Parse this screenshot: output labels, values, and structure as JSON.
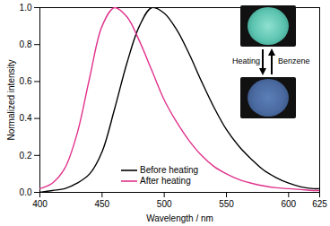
{
  "chart_data": {
    "type": "line",
    "x_label": "Wavelength / nm",
    "y_label": "Normalized intensity",
    "x": [
      400,
      410,
      420,
      430,
      440,
      450,
      460,
      470,
      480,
      490,
      500,
      510,
      520,
      530,
      540,
      550,
      560,
      570,
      580,
      590,
      600,
      610,
      620,
      625
    ],
    "series": [
      {
        "name": "Before heating",
        "color": "#000000",
        "values": [
          0.0,
          0.01,
          0.02,
          0.05,
          0.1,
          0.22,
          0.45,
          0.7,
          0.9,
          1.0,
          0.97,
          0.88,
          0.75,
          0.6,
          0.46,
          0.34,
          0.25,
          0.18,
          0.12,
          0.08,
          0.05,
          0.03,
          0.02,
          0.02
        ]
      },
      {
        "name": "After heating",
        "color": "#e0328c",
        "values": [
          0.02,
          0.05,
          0.13,
          0.32,
          0.62,
          0.9,
          1.0,
          0.95,
          0.82,
          0.66,
          0.5,
          0.38,
          0.28,
          0.2,
          0.14,
          0.1,
          0.07,
          0.05,
          0.035,
          0.025,
          0.02,
          0.015,
          0.01,
          0.01
        ]
      }
    ],
    "xlim": [
      400,
      625
    ],
    "xticks": [
      400,
      450,
      500,
      550,
      600,
      625
    ],
    "ylim": [
      0,
      1.0
    ],
    "yticks": [
      {
        "value": 0,
        "label": "0.0"
      },
      0.2,
      0.4,
      0.6,
      0.8,
      {
        "value": 1.0,
        "label": "1.0"
      }
    ],
    "grid": false,
    "legend": "lower center",
    "annotations": [
      "Heating",
      "Benzene"
    ]
  }
}
